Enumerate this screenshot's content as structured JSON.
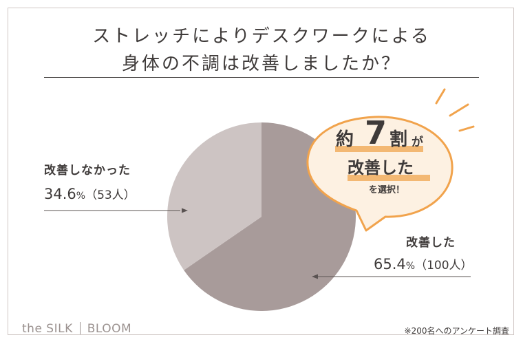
{
  "header": {
    "title_line1": "ストレッチによりデスクワークによる",
    "title_line2": "身体の不調は改善しましたか？"
  },
  "callout": {
    "prefix": "約",
    "number": "7",
    "suffix": "割",
    "particle": "が",
    "line2": "改善した",
    "line3": "を選択！"
  },
  "chart_data": {
    "type": "pie",
    "title": "ストレッチによりデスクワークによる身体の不調は改善しましたか？",
    "slices": [
      {
        "label": "改善した",
        "percent": 65.4,
        "percent_text": "65.4",
        "count_text": "（100人）",
        "color": "#a89b9a"
      },
      {
        "label": "改善しなかった",
        "percent": 34.6,
        "percent_text": "34.6",
        "count_text": "（53人）",
        "color": "#cdc4c3"
      }
    ],
    "percent_unit": "%",
    "start_angle": "12 o'clock, clockwise",
    "legend": "none (direct labels)"
  },
  "footer": {
    "brand_left": "the SILK",
    "brand_right": "BLOOM",
    "note": "※200名へのアンケート調査"
  },
  "colors": {
    "text": "#3e3a39",
    "accent_orange": "#f1a34c",
    "highlight": "#f3b873",
    "bubble_fill": "#fdf1e2",
    "frame": "#cfc6c4"
  }
}
